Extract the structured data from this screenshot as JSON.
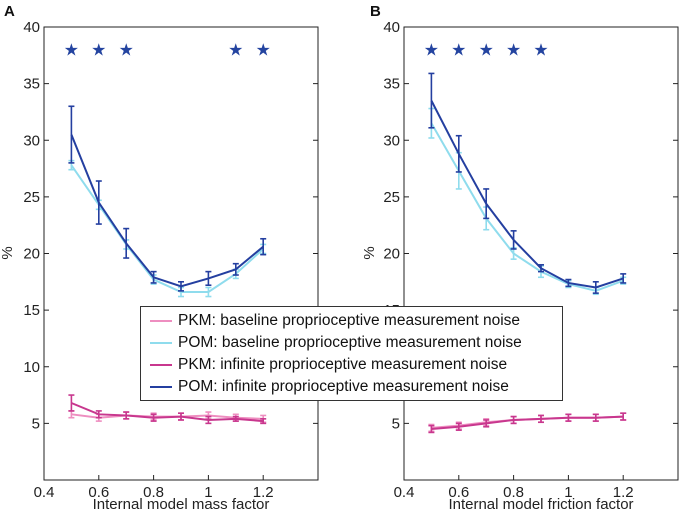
{
  "chart_data": [
    {
      "panel": "A",
      "type": "line",
      "xlabel": "Internal model mass factor",
      "ylabel": "%",
      "xlim": [
        0.4,
        1.4
      ],
      "ylim": [
        0,
        40
      ],
      "xticks": [
        "0.4",
        "0.6",
        "0.8",
        "1",
        "1.2"
      ],
      "xtick_values": [
        0.4,
        0.6,
        0.8,
        1.0,
        1.2
      ],
      "yticks": [
        "5",
        "10",
        "15",
        "20",
        "25",
        "30",
        "35",
        "40"
      ],
      "ytick_values": [
        5,
        10,
        15,
        20,
        25,
        30,
        35,
        40
      ],
      "x": [
        0.5,
        0.6,
        0.7,
        0.8,
        0.9,
        1.0,
        1.1,
        1.2
      ],
      "stars_x": [
        0.5,
        0.6,
        0.7,
        1.1,
        1.2
      ],
      "star_y": 38,
      "series": [
        {
          "key": "pkm_base",
          "values": [
            5.8,
            5.5,
            5.7,
            5.6,
            5.6,
            5.7,
            5.5,
            5.4
          ],
          "err": [
            0.3,
            0.3,
            0.3,
            0.3,
            0.3,
            0.3,
            0.3,
            0.3
          ]
        },
        {
          "key": "pom_base",
          "values": [
            27.8,
            24.3,
            20.8,
            17.7,
            16.6,
            16.6,
            18.2,
            20.4
          ],
          "err": [
            0.4,
            0.4,
            0.4,
            0.4,
            0.4,
            0.4,
            0.4,
            0.4
          ]
        },
        {
          "key": "pkm_inf",
          "values": [
            6.8,
            5.8,
            5.7,
            5.5,
            5.6,
            5.3,
            5.4,
            5.2
          ],
          "err": [
            0.7,
            0.3,
            0.3,
            0.3,
            0.3,
            0.3,
            0.2,
            0.2
          ]
        },
        {
          "key": "pom_inf",
          "values": [
            30.5,
            24.5,
            20.9,
            17.9,
            17.1,
            17.8,
            18.6,
            20.6
          ],
          "err": [
            2.5,
            1.9,
            1.3,
            0.5,
            0.4,
            0.6,
            0.5,
            0.7
          ]
        }
      ]
    },
    {
      "panel": "B",
      "type": "line",
      "xlabel": "Internal model friction factor",
      "ylabel": "%",
      "xlim": [
        0.4,
        1.4
      ],
      "ylim": [
        0,
        40
      ],
      "xticks": [
        "0.4",
        "0.6",
        "0.8",
        "1",
        "1.2"
      ],
      "xtick_values": [
        0.4,
        0.6,
        0.8,
        1.0,
        1.2
      ],
      "yticks": [
        "5",
        "10",
        "15",
        "20",
        "25",
        "30",
        "35",
        "40"
      ],
      "ytick_values": [
        5,
        10,
        15,
        20,
        25,
        30,
        35,
        40
      ],
      "x": [
        0.5,
        0.6,
        0.7,
        0.8,
        0.9,
        1.0,
        1.1,
        1.2
      ],
      "stars_x": [
        0.5,
        0.6,
        0.7,
        0.8,
        0.9
      ],
      "star_y": 38,
      "series": [
        {
          "key": "pkm_base",
          "values": [
            4.6,
            4.8,
            5.1,
            5.3,
            5.4,
            5.5,
            5.5,
            5.6
          ],
          "err": [
            0.3,
            0.3,
            0.3,
            0.3,
            0.3,
            0.3,
            0.3,
            0.3
          ]
        },
        {
          "key": "pom_base",
          "values": [
            31.5,
            27.3,
            23.1,
            20.0,
            18.4,
            17.3,
            16.7,
            17.6
          ],
          "err": [
            1.3,
            1.6,
            1.0,
            0.5,
            0.5,
            0.3,
            0.3,
            0.3
          ]
        },
        {
          "key": "pkm_inf",
          "values": [
            4.5,
            4.7,
            5.0,
            5.3,
            5.4,
            5.5,
            5.5,
            5.6
          ],
          "err": [
            0.3,
            0.3,
            0.3,
            0.3,
            0.3,
            0.3,
            0.3,
            0.3
          ]
        },
        {
          "key": "pom_inf",
          "values": [
            33.5,
            28.8,
            24.4,
            21.2,
            18.7,
            17.4,
            17.0,
            17.8
          ],
          "err": [
            2.4,
            1.6,
            1.3,
            0.8,
            0.3,
            0.3,
            0.5,
            0.4
          ]
        }
      ]
    }
  ],
  "series_styles": {
    "pkm_base": {
      "label": "PKM: baseline proprioceptive measurement noise",
      "color": "#ee8ec0"
    },
    "pom_base": {
      "label": "POM: baseline proprioceptive measurement noise",
      "color": "#8fdced"
    },
    "pkm_inf": {
      "label": "PKM: infinite proprioceptive measurement noise",
      "color": "#c8378e"
    },
    "pom_inf": {
      "label": "POM: infinite proprioceptive measurement noise",
      "color": "#243fa0"
    }
  },
  "legend_order": [
    "pkm_base",
    "pom_base",
    "pkm_inf",
    "pom_inf"
  ],
  "star_glyph": "★",
  "legend": {
    "pkm_base": "PKM: baseline proprioceptive measurement noise",
    "pom_base": "POM: baseline proprioceptive measurement noise",
    "pkm_inf": "PKM: infinite proprioceptive measurement noise",
    "pom_inf": "POM: infinite proprioceptive measurement noise"
  }
}
